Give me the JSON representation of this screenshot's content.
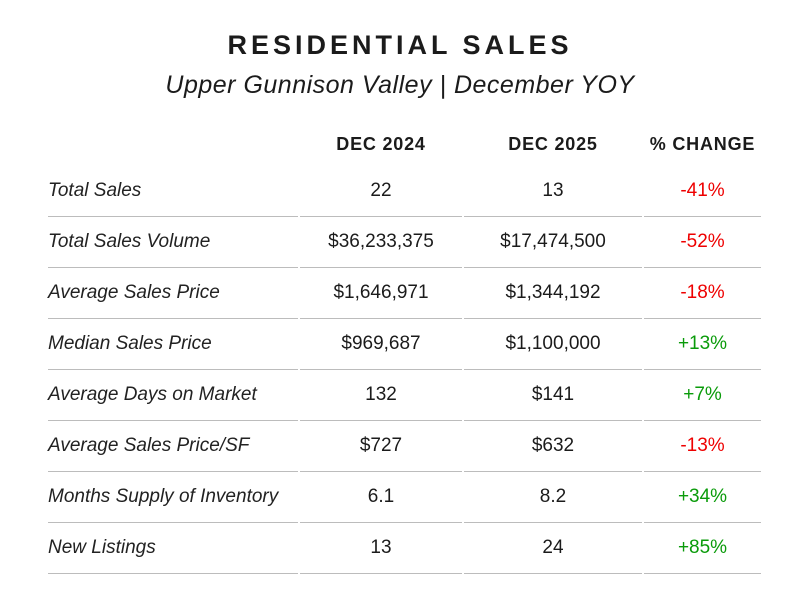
{
  "title": "RESIDENTIAL SALES",
  "subtitle": "Upper Gunnison Valley | December YOY",
  "colors": {
    "negative": "#ee0000",
    "positive": "#0a9b0a",
    "divider": "#bcbcbc",
    "text": "#1b1b1b"
  },
  "chart_data": {
    "type": "table",
    "title": "RESIDENTIAL SALES",
    "subtitle": "Upper Gunnison Valley | December YOY",
    "columns": [
      "",
      "DEC 2024",
      "DEC 2025",
      "% CHANGE"
    ],
    "rows": [
      {
        "label": "Total Sales",
        "dec_2024": "22",
        "dec_2025": "13",
        "change": "-41%",
        "trend": "negative"
      },
      {
        "label": "Total Sales Volume",
        "dec_2024": "$36,233,375",
        "dec_2025": "$17,474,500",
        "change": "-52%",
        "trend": "negative"
      },
      {
        "label": "Average Sales Price",
        "dec_2024": "$1,646,971",
        "dec_2025": "$1,344,192",
        "change": "-18%",
        "trend": "negative"
      },
      {
        "label": "Median Sales Price",
        "dec_2024": "$969,687",
        "dec_2025": "$1,100,000",
        "change": "+13%",
        "trend": "positive"
      },
      {
        "label": "Average Days on Market",
        "dec_2024": "132",
        "dec_2025": "$141",
        "change": "+7%",
        "trend": "positive"
      },
      {
        "label": "Average Sales Price/SF",
        "dec_2024": "$727",
        "dec_2025": "$632",
        "change": "-13%",
        "trend": "negative"
      },
      {
        "label": "Months Supply of Inventory",
        "dec_2024": "6.1",
        "dec_2025": "8.2",
        "change": "+34%",
        "trend": "positive"
      },
      {
        "label": "New Listings",
        "dec_2024": "13",
        "dec_2025": "24",
        "change": "+85%",
        "trend": "positive"
      }
    ]
  }
}
